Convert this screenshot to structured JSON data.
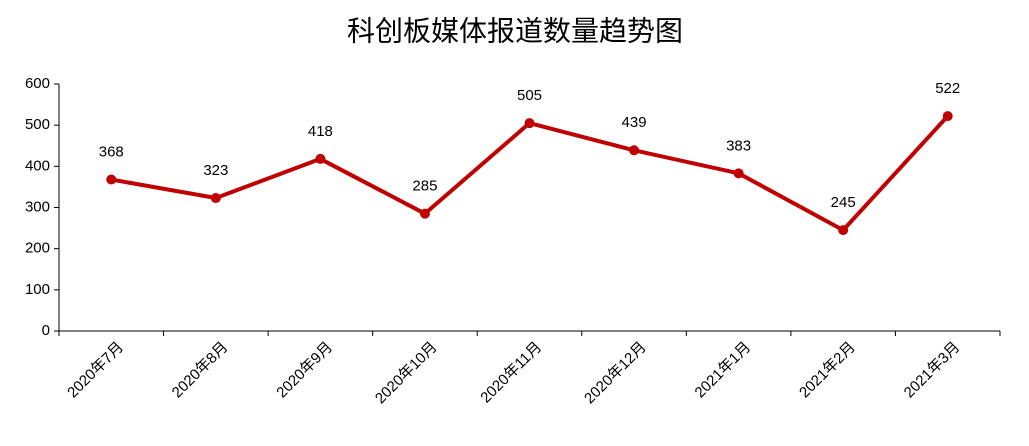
{
  "chart_data": {
    "type": "line",
    "title": "科创板媒体报道数量趋势图",
    "categories": [
      "2020年7月",
      "2020年8月",
      "2020年9月",
      "2020年10月",
      "2020年11月",
      "2020年12月",
      "2021年1月",
      "2021年2月",
      "2021年3月"
    ],
    "values": [
      368,
      323,
      418,
      285,
      505,
      439,
      383,
      245,
      522
    ],
    "color": "#c00000",
    "ylim": [
      0,
      600
    ],
    "yticks": [
      0,
      100,
      200,
      300,
      400,
      500,
      600
    ],
    "grid": false
  }
}
